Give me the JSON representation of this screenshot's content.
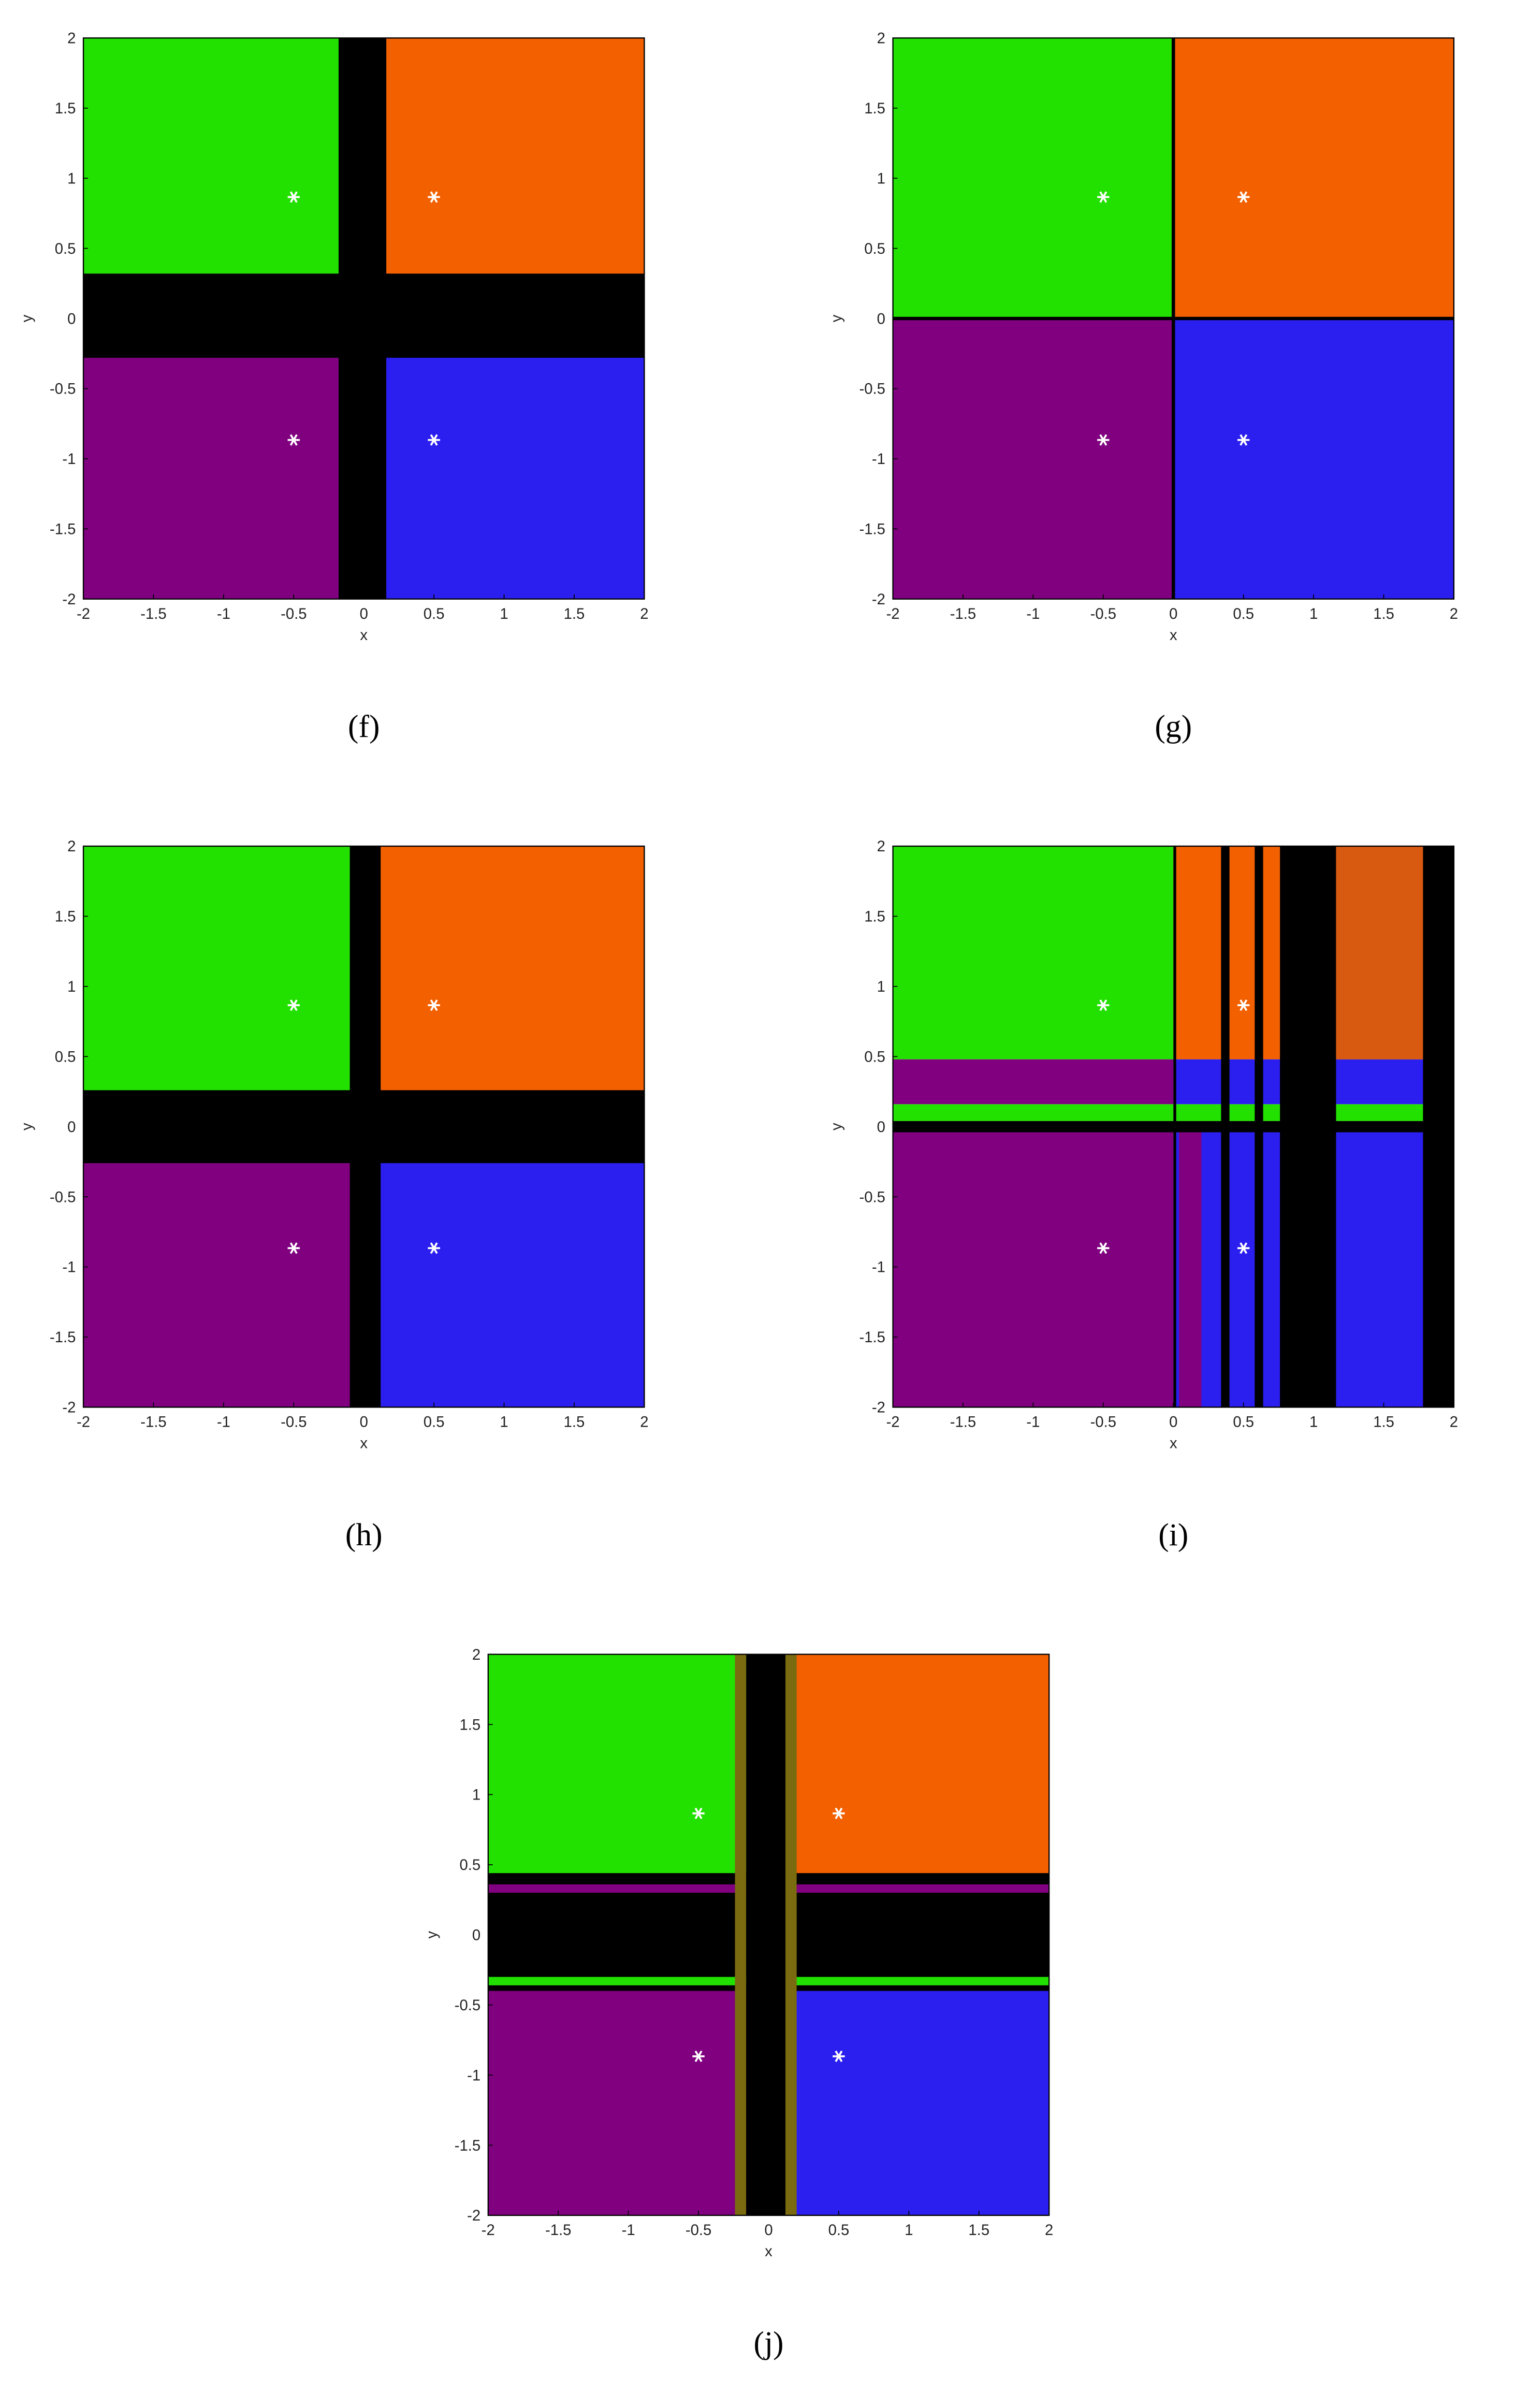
{
  "chart_data": [
    {
      "type": "scatter",
      "title": "(f)",
      "xlabel": "x",
      "ylabel": "y",
      "xlim": [
        -2,
        2
      ],
      "ylim": [
        -2,
        2
      ],
      "xticks": [
        -2,
        -1.5,
        -1,
        -0.5,
        0,
        0.5,
        1,
        1.5,
        2
      ],
      "yticks": [
        -2,
        -1.5,
        -1,
        -0.5,
        0,
        0.5,
        1,
        1.5,
        2
      ],
      "series": [
        {
          "color": "#ffffff",
          "x": [
            0.5,
            -0.5,
            -0.5,
            0.5
          ],
          "values": [
            0.866,
            0.866,
            -0.866,
            -0.866
          ]
        }
      ]
    },
    {
      "type": "scatter",
      "title": "(g)",
      "xlabel": "x",
      "ylabel": "y",
      "xlim": [
        -2,
        2
      ],
      "ylim": [
        -2,
        2
      ],
      "xticks": [
        -2,
        -1.5,
        -1,
        -0.5,
        0,
        0.5,
        1,
        1.5,
        2
      ],
      "yticks": [
        -2,
        -1.5,
        -1,
        -0.5,
        0,
        0.5,
        1,
        1.5,
        2
      ],
      "series": [
        {
          "color": "#ffffff",
          "x": [
            0.5,
            -0.5,
            -0.5,
            0.5
          ],
          "values": [
            0.866,
            0.866,
            -0.866,
            -0.866
          ]
        }
      ]
    },
    {
      "type": "scatter",
      "title": "(h)",
      "xlabel": "x",
      "ylabel": "y",
      "xlim": [
        -2,
        2
      ],
      "ylim": [
        -2,
        2
      ],
      "xticks": [
        -2,
        -1.5,
        -1,
        -0.5,
        0,
        0.5,
        1,
        1.5,
        2
      ],
      "yticks": [
        -2,
        -1.5,
        -1,
        -0.5,
        0,
        0.5,
        1,
        1.5,
        2
      ],
      "series": [
        {
          "color": "#ffffff",
          "x": [
            0.5,
            -0.5,
            -0.5,
            0.5
          ],
          "values": [
            0.866,
            0.866,
            -0.866,
            -0.866
          ]
        }
      ]
    },
    {
      "type": "scatter",
      "title": "(i)",
      "xlabel": "x",
      "ylabel": "y",
      "xlim": [
        -2,
        2
      ],
      "ylim": [
        -2,
        2
      ],
      "xticks": [
        -2,
        -1.5,
        -1,
        -0.5,
        0,
        0.5,
        1,
        1.5,
        2
      ],
      "yticks": [
        -2,
        -1.5,
        -1,
        -0.5,
        0,
        0.5,
        1,
        1.5,
        2
      ],
      "series": [
        {
          "color": "#ffffff",
          "x": [
            0.5,
            -0.5,
            -0.5,
            0.5
          ],
          "values": [
            0.866,
            0.866,
            -0.866,
            -0.866
          ]
        }
      ]
    },
    {
      "type": "scatter",
      "title": "(j)",
      "xlabel": "x",
      "ylabel": "y",
      "xlim": [
        -2,
        2
      ],
      "ylim": [
        -2,
        2
      ],
      "xticks": [
        -2,
        -1.5,
        -1,
        -0.5,
        0,
        0.5,
        1,
        1.5,
        2
      ],
      "yticks": [
        -2,
        -1.5,
        -1,
        -0.5,
        0,
        0.5,
        1,
        1.5,
        2
      ],
      "series": [
        {
          "color": "#ffffff",
          "x": [
            0.5,
            -0.5,
            -0.5,
            0.5
          ],
          "values": [
            0.866,
            0.866,
            -0.866,
            -0.866
          ]
        }
      ]
    }
  ]
}
